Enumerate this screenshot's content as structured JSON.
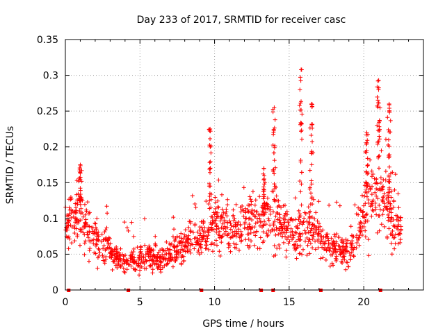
{
  "chart_data": {
    "type": "scatter",
    "title": "Day 233 of 2017, SRMTID for receiver casc",
    "xlabel": "GPS time / hours",
    "ylabel": "SRMTID / TECUs",
    "xlim": [
      0,
      24
    ],
    "ylim": [
      0,
      0.35
    ],
    "grid": true,
    "marker": "+",
    "series_color": "#ff0000",
    "xticks": [
      0,
      5,
      10,
      15,
      20
    ],
    "xtick_labels": [
      "0",
      "5",
      "10",
      "15",
      "20"
    ],
    "yticks": [
      0,
      0.05,
      0.1,
      0.15,
      0.2,
      0.25,
      0.3,
      0.35
    ],
    "ytick_labels": [
      "0",
      "0.05",
      "0.1",
      "0.15",
      "0.2",
      "0.25",
      "0.3",
      "0.35"
    ],
    "gap_markers_x": [
      0.2,
      4.2,
      9.1,
      13.1,
      13.9,
      17.1,
      21.1
    ],
    "envelope": {
      "description": "approximate mean SRMTID level vs time (hours), used with noise to reproduce the dense scatter",
      "x": [
        0,
        0.5,
        1,
        1.5,
        2,
        2.5,
        3,
        3.5,
        4,
        4.5,
        5,
        5.5,
        6,
        6.5,
        7,
        7.5,
        8,
        8.5,
        9,
        9.5,
        10,
        10.5,
        11,
        11.5,
        12,
        12.5,
        13,
        13.5,
        14,
        14.5,
        15,
        15.5,
        16,
        16.5,
        17,
        17.5,
        18,
        18.5,
        19,
        19.5,
        20,
        20.5,
        21,
        21.5,
        22,
        22.5
      ],
      "y": [
        0.09,
        0.1,
        0.11,
        0.085,
        0.07,
        0.06,
        0.055,
        0.045,
        0.04,
        0.045,
        0.045,
        0.05,
        0.045,
        0.045,
        0.05,
        0.055,
        0.06,
        0.08,
        0.07,
        0.075,
        0.09,
        0.09,
        0.085,
        0.085,
        0.09,
        0.095,
        0.085,
        0.1,
        0.1,
        0.09,
        0.08,
        0.075,
        0.09,
        0.09,
        0.075,
        0.065,
        0.06,
        0.055,
        0.055,
        0.07,
        0.1,
        0.13,
        0.14,
        0.12,
        0.1,
        0.085
      ]
    },
    "peaks": [
      {
        "x": 1.0,
        "y": 0.175
      },
      {
        "x": 9.7,
        "y": 0.225
      },
      {
        "x": 13.3,
        "y": 0.17
      },
      {
        "x": 14.0,
        "y": 0.255
      },
      {
        "x": 15.8,
        "y": 0.308
      },
      {
        "x": 16.5,
        "y": 0.26
      },
      {
        "x": 20.2,
        "y": 0.22
      },
      {
        "x": 21.0,
        "y": 0.293
      },
      {
        "x": 21.7,
        "y": 0.26
      }
    ],
    "num_points": 1400
  }
}
